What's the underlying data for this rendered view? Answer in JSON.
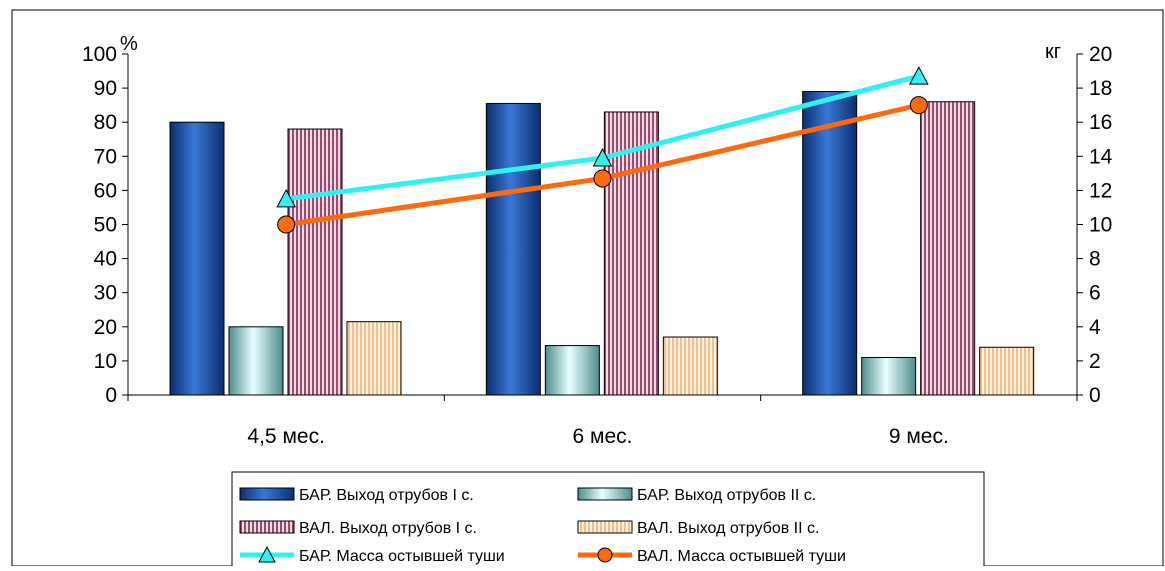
{
  "chart_data": {
    "type": "bar",
    "categories": [
      "4,5 мес.",
      "6 мес.",
      "9 мес."
    ],
    "y_left": {
      "unit": "%",
      "min": 0,
      "max": 100,
      "step": 10
    },
    "y_right": {
      "unit": "кг",
      "min": 0,
      "max": 20,
      "step": 2
    },
    "series": [
      {
        "name": "БАР. Выход отрубов I с.",
        "kind": "bar",
        "axis": "left",
        "values": [
          80,
          85.5,
          89
        ],
        "color": "#1f4fa0"
      },
      {
        "name": "БАР. Выход отрубов II с.",
        "kind": "bar",
        "axis": "left",
        "values": [
          20,
          14.5,
          11
        ],
        "color": "#aee3e3"
      },
      {
        "name": "ВАЛ. Выход отрубов I с.",
        "kind": "bar",
        "axis": "left",
        "values": [
          78,
          83,
          86
        ],
        "color": "#b0607c"
      },
      {
        "name": "ВАЛ. Выход отрубов II с.",
        "kind": "bar",
        "axis": "left",
        "values": [
          21.5,
          17,
          14
        ],
        "color": "#fbd2a8"
      },
      {
        "name": "БАР. Масса остывшей туши",
        "kind": "line",
        "axis": "right",
        "marker": "triangle",
        "values": [
          11.5,
          13.9,
          18.7
        ],
        "color": "#33f0f0"
      },
      {
        "name": "ВАЛ. Масса остывшей туши",
        "kind": "line",
        "axis": "right",
        "marker": "circle",
        "values": [
          10,
          12.7,
          17
        ],
        "color": "#ff6a10"
      }
    ],
    "legend_position": "bottom",
    "grid": false
  }
}
